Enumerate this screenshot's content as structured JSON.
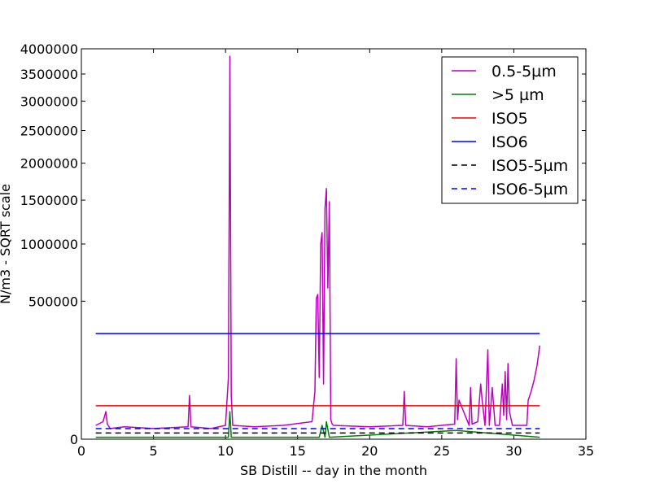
{
  "chart_data": {
    "type": "line",
    "title": "",
    "xlabel": "SB Distill -- day in the month",
    "ylabel": "N/m3 - SQRT scale",
    "xlim": [
      0,
      35
    ],
    "ylim": [
      0,
      4000000
    ],
    "yscale": "sqrt",
    "grid": false,
    "legend_position": "top-right",
    "x_ticks": [
      "0",
      "5",
      "10",
      "15",
      "20",
      "25",
      "30",
      "35"
    ],
    "y_ticks": [
      "0",
      "500000",
      "1000000",
      "1500000",
      "2000000",
      "2500000",
      "3000000",
      "3500000",
      "4000000"
    ],
    "series": [
      {
        "name": "0.5-5µm",
        "color": "#bf00bf",
        "dash": "solid",
        "x": [
          1.0,
          1.5,
          1.7,
          1.8,
          2.0,
          3.0,
          5.0,
          7.4,
          7.5,
          7.6,
          9.0,
          10.0,
          10.2,
          10.3,
          10.4,
          10.5,
          12.0,
          14.0,
          16.0,
          16.2,
          16.3,
          16.4,
          16.5,
          16.6,
          16.7,
          16.8,
          16.9,
          17.0,
          17.1,
          17.2,
          17.3,
          17.4,
          17.5,
          20.0,
          22.3,
          22.4,
          22.5,
          24.0,
          25.9,
          26.0,
          26.1,
          26.2,
          26.9,
          27.0,
          27.1,
          27.5,
          27.7,
          27.8,
          28.0,
          28.2,
          28.3,
          28.5,
          28.7,
          29.0,
          29.2,
          29.3,
          29.4,
          29.5,
          29.6,
          29.7,
          29.9,
          30.1,
          30.5,
          30.9,
          31.0,
          31.2,
          31.4,
          31.6,
          31.7,
          31.8
        ],
        "values": [
          5000,
          8000,
          20000,
          6000,
          3000,
          4000,
          3000,
          4000,
          50000,
          4000,
          3000,
          5000,
          100000,
          3850000,
          50000,
          5000,
          4000,
          5000,
          8000,
          60000,
          520000,
          550000,
          100000,
          1000000,
          1120000,
          80000,
          1400000,
          1650000,
          600000,
          1480000,
          10000,
          6000,
          5000,
          4000,
          5000,
          60000,
          5000,
          4000,
          6000,
          170000,
          10000,
          40000,
          5000,
          70000,
          6000,
          8000,
          80000,
          40000,
          5000,
          210000,
          5000,
          70000,
          5000,
          5000,
          80000,
          15000,
          120000,
          10000,
          150000,
          20000,
          5000,
          5000,
          5000,
          5000,
          40000,
          60000,
          90000,
          140000,
          180000,
          230000
        ]
      },
      {
        "name": ">5 µm",
        "color": "#008000",
        "dash": "solid",
        "x": [
          1.0,
          10.2,
          10.3,
          10.4,
          16.5,
          16.7,
          16.9,
          17.0,
          17.2,
          26.0,
          28.2,
          31.8
        ],
        "values": [
          100,
          100,
          20000,
          100,
          100,
          5000,
          100,
          8000,
          100,
          2000,
          1000,
          100
        ]
      },
      {
        "name": "ISO5",
        "color": "#ff0000",
        "dash": "solid",
        "x": [
          1.0,
          31.8
        ],
        "values": [
          29300,
          29300
        ]
      },
      {
        "name": "ISO6",
        "color": "#0000ff",
        "dash": "solid",
        "x": [
          1.0,
          31.8
        ],
        "values": [
          293000,
          293000
        ]
      },
      {
        "name": "ISO5-5µm",
        "color": "#000000",
        "dash": "dashed",
        "x": [
          1.0,
          31.8
        ],
        "values": [
          1000,
          1000
        ]
      },
      {
        "name": "ISO6-5µm",
        "color": "#0000ff",
        "dash": "dashed",
        "x": [
          1.0,
          31.8
        ],
        "values": [
          2930,
          2930
        ]
      }
    ]
  }
}
